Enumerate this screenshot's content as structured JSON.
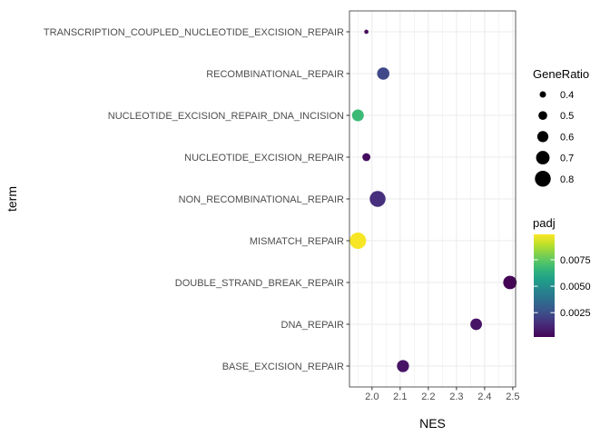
{
  "chart_data": {
    "type": "scatter",
    "xlabel": "NES",
    "ylabel": "term",
    "xlim": [
      1.92,
      2.51
    ],
    "x_ticks": [
      "2.0",
      "2.1",
      "2.2",
      "2.3",
      "2.4",
      "2.5"
    ],
    "categories": [
      "BASE_EXCISION_REPAIR",
      "DNA_REPAIR",
      "DOUBLE_STRAND_BREAK_REPAIR",
      "MISMATCH_REPAIR",
      "NON_RECOMBINATIONAL_REPAIR",
      "NUCLEOTIDE_EXCISION_REPAIR",
      "NUCLEOTIDE_EXCISION_REPAIR_DNA_INCISION",
      "RECOMBINATIONAL_REPAIR",
      "TRANSCRIPTION_COUPLED_NUCLEOTIDE_EXCISION_REPAIR"
    ],
    "points": [
      {
        "term": "BASE_EXCISION_REPAIR",
        "nes": 2.11,
        "gene_ratio": 0.64,
        "padj": 0.0007
      },
      {
        "term": "DNA_REPAIR",
        "nes": 2.37,
        "gene_ratio": 0.62,
        "padj": 0.0007
      },
      {
        "term": "DOUBLE_STRAND_BREAK_REPAIR",
        "nes": 2.49,
        "gene_ratio": 0.7,
        "padj": 0.0003
      },
      {
        "term": "MISMATCH_REPAIR",
        "nes": 1.95,
        "gene_ratio": 0.82,
        "padj": 0.0098
      },
      {
        "term": "NON_RECOMBINATIONAL_REPAIR",
        "nes": 2.02,
        "gene_ratio": 0.8,
        "padj": 0.0015
      },
      {
        "term": "NUCLEOTIDE_EXCISION_REPAIR",
        "nes": 1.98,
        "gene_ratio": 0.47,
        "padj": 0.0005
      },
      {
        "term": "NUCLEOTIDE_EXCISION_REPAIR_DNA_INCISION",
        "nes": 1.95,
        "gene_ratio": 0.63,
        "padj": 0.0068
      },
      {
        "term": "RECOMBINATIONAL_REPAIR",
        "nes": 2.04,
        "gene_ratio": 0.65,
        "padj": 0.0023
      },
      {
        "term": "TRANSCRIPTION_COUPLED_NUCLEOTIDE_EXCISION_REPAIR",
        "nes": 1.98,
        "gene_ratio": 0.31,
        "padj": 0.0005
      }
    ],
    "size_legend": {
      "title": "GeneRatio",
      "breaks": [
        0.4,
        0.5,
        0.6,
        0.7,
        0.8
      ],
      "labels": [
        "0.4",
        "0.5",
        "0.6",
        "0.7",
        "0.8"
      ]
    },
    "color_legend": {
      "title": "padj",
      "range": [
        0.0002,
        0.0099
      ],
      "breaks": [
        0.0025,
        0.005,
        0.0075
      ],
      "labels": [
        "0.0025",
        "0.0050",
        "0.0075"
      ],
      "palette": "viridis"
    },
    "panel_background": "#ffffff",
    "grid_color": "#ebebeb",
    "grid": true
  }
}
